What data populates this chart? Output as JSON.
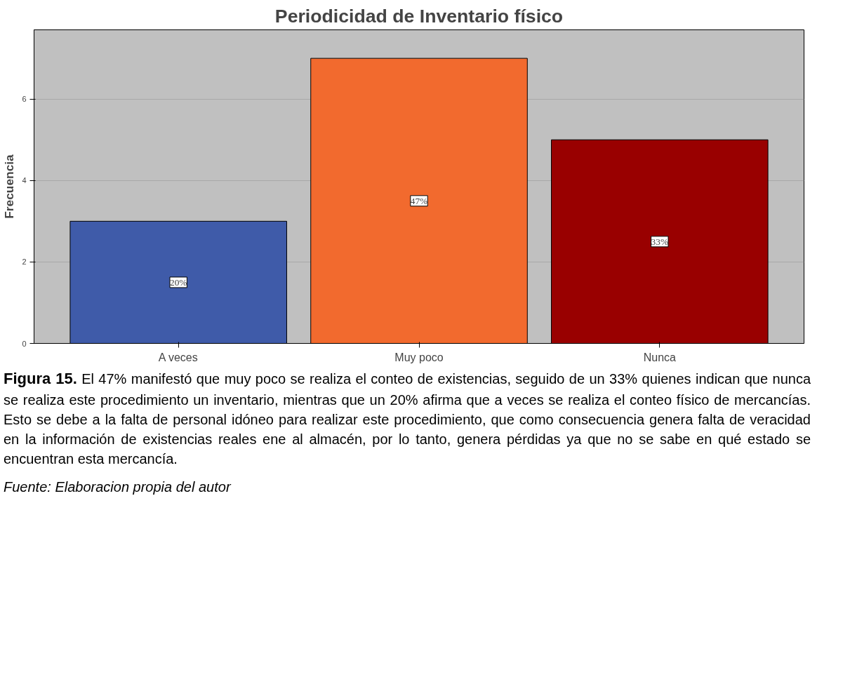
{
  "chart_data": {
    "type": "bar",
    "title": "Periodicidad de Inventario físico",
    "ylabel": "Frecuencia",
    "categories": [
      "A veces",
      "Muy poco",
      "Nunca"
    ],
    "values": [
      3,
      7,
      5
    ],
    "colors": [
      "#3f5ba9",
      "#f26a2e",
      "#990000"
    ],
    "ylim": [
      0,
      7.7
    ],
    "yticks": [
      0,
      2,
      4,
      6
    ],
    "grid": "y",
    "annotations": [
      {
        "text": "20%",
        "x": "A veces",
        "y": 1.5
      },
      {
        "text": "47%",
        "x": "Muy poco",
        "y": 3.5
      },
      {
        "text": "33%",
        "x": "Nunca",
        "y": 2.5
      },
      "Figura 15.",
      "El 47% manifestó que muy poco se realiza el conteo de existencias, seguido de un 33% quienes indican que nunca se realiza este procedimiento un inventario, mientras que un 20% afirma que a veces se realiza el conteo físico de mercancías. Esto se debe a la falta de personal idóneo para realizar este procedimiento, que como consecuencia genera falta de veracidad en la información de existencias reales ene al almacén, por lo tanto, genera pérdidas ya que no se sabe en qué estado se encuentran esta mercancía.",
      "Fuente: Elaboracion propia del autor"
    ]
  }
}
